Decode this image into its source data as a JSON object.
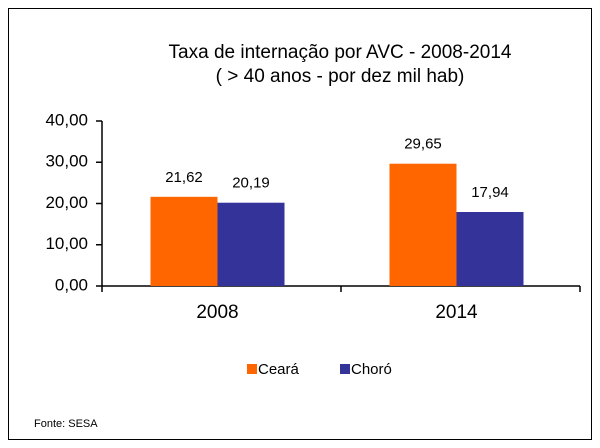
{
  "chart_data": {
    "type": "bar",
    "title": "Taxa de internação por AVC - 2008-2014",
    "subtitle": "( > 40 anos - por dez mil hab)",
    "categories": [
      "2008",
      "2014"
    ],
    "series": [
      {
        "name": "Ceará",
        "color": "#ff6600",
        "values": [
          21.62,
          29.65
        ],
        "value_labels": [
          "21,62",
          "29,65"
        ]
      },
      {
        "name": "Choró",
        "color": "#333399",
        "values": [
          20.19,
          17.94
        ],
        "value_labels": [
          "20,19",
          "17,94"
        ]
      }
    ],
    "ylim": [
      0,
      40
    ],
    "yticks": [
      {
        "value": 0,
        "label": "0,00"
      },
      {
        "value": 10,
        "label": "10,00"
      },
      {
        "value": 20,
        "label": "20,00"
      },
      {
        "value": 30,
        "label": "30,00"
      },
      {
        "value": 40,
        "label": "40,00"
      }
    ],
    "grid": false,
    "legend": "bottom",
    "source": "Fonte: SESA"
  }
}
